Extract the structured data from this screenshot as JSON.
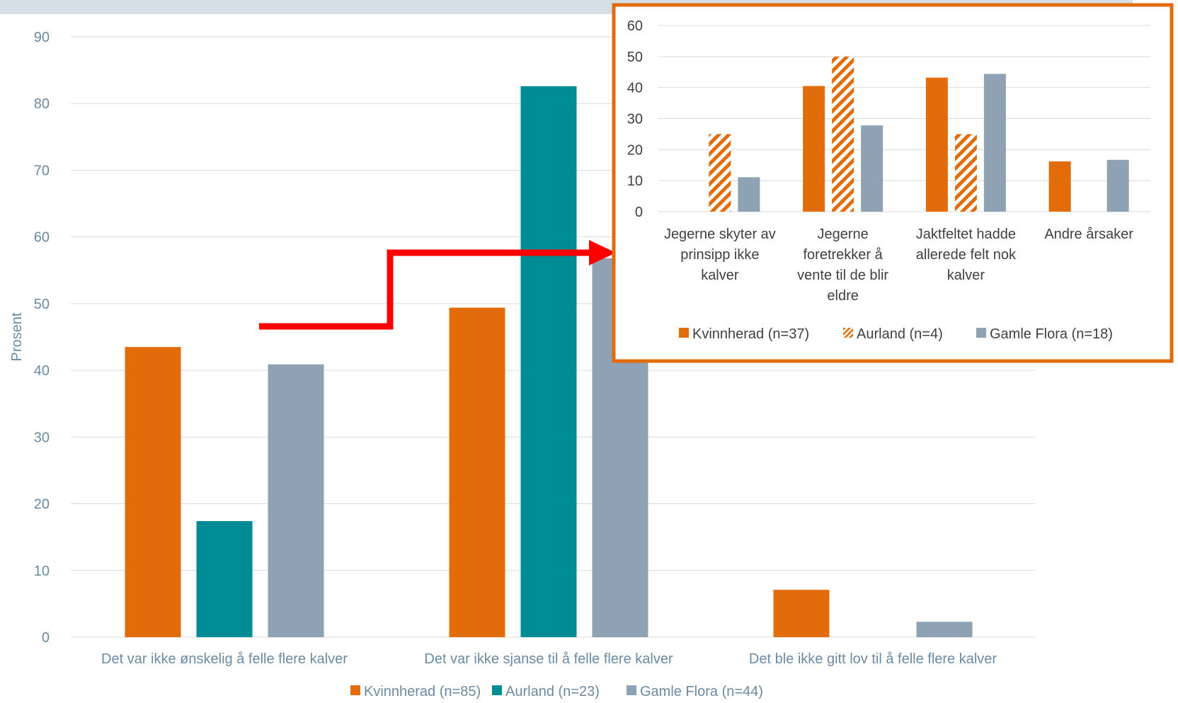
{
  "colors": {
    "kvinnherad": "#e36c0a",
    "aurland": "#008c95",
    "gamle_flora": "#8ea2b3",
    "axis_text": "#6b8aa3",
    "grid": "#d9d9d9",
    "arrow": "#ff0000",
    "inset_border": "#e36c0a",
    "top_band": "#d6dee6"
  },
  "chart_data": [
    {
      "type": "bar",
      "title": "",
      "xlabel": "",
      "ylabel": "Prosent",
      "ylim": [
        0,
        90
      ],
      "yticks": [
        0,
        10,
        20,
        30,
        40,
        50,
        60,
        70,
        80,
        90
      ],
      "grid": true,
      "legend_position": "bottom",
      "categories": [
        "Det var ikke ønskelig å felle flere kalver",
        "Det var ikke sjanse til å felle flere kalver",
        "Det ble ikke gitt lov til å felle flere kalver"
      ],
      "series": [
        {
          "name": "Kvinnherad (n=85)",
          "color_key": "kvinnherad",
          "pattern": "solid",
          "values": [
            43.5,
            49.4,
            7.1
          ]
        },
        {
          "name": "Aurland (n=23)",
          "color_key": "aurland",
          "pattern": "solid",
          "values": [
            17.4,
            82.6,
            0
          ]
        },
        {
          "name": "Gamle Flora (n=44)",
          "color_key": "gamle_flora",
          "pattern": "solid",
          "values": [
            40.9,
            56.8,
            2.3
          ]
        }
      ]
    },
    {
      "type": "bar",
      "title": "",
      "xlabel": "",
      "ylabel": "",
      "ylim": [
        0,
        60
      ],
      "yticks": [
        0,
        10,
        20,
        30,
        40,
        50,
        60
      ],
      "grid": true,
      "legend_position": "bottom",
      "categories": [
        [
          "Jegerne skyter av",
          "prinsipp ikke",
          "kalver"
        ],
        [
          "Jegerne",
          "foretrekker å",
          "vente til de blir",
          "eldre"
        ],
        [
          "Jaktfeltet hadde",
          "allerede felt nok",
          "kalver"
        ],
        [
          "Andre årsaker"
        ]
      ],
      "series": [
        {
          "name": "Kvinnherad (n=37)",
          "color_key": "kvinnherad",
          "pattern": "solid",
          "values": [
            0,
            40.5,
            43.2,
            16.2
          ]
        },
        {
          "name": "Aurland (n=4)",
          "color_key": "kvinnherad",
          "pattern": "hatched",
          "values": [
            25,
            50,
            25,
            0
          ]
        },
        {
          "name": "Gamle Flora (n=18)",
          "color_key": "gamle_flora",
          "pattern": "solid",
          "values": [
            11.1,
            27.8,
            44.4,
            16.7
          ]
        }
      ]
    }
  ]
}
